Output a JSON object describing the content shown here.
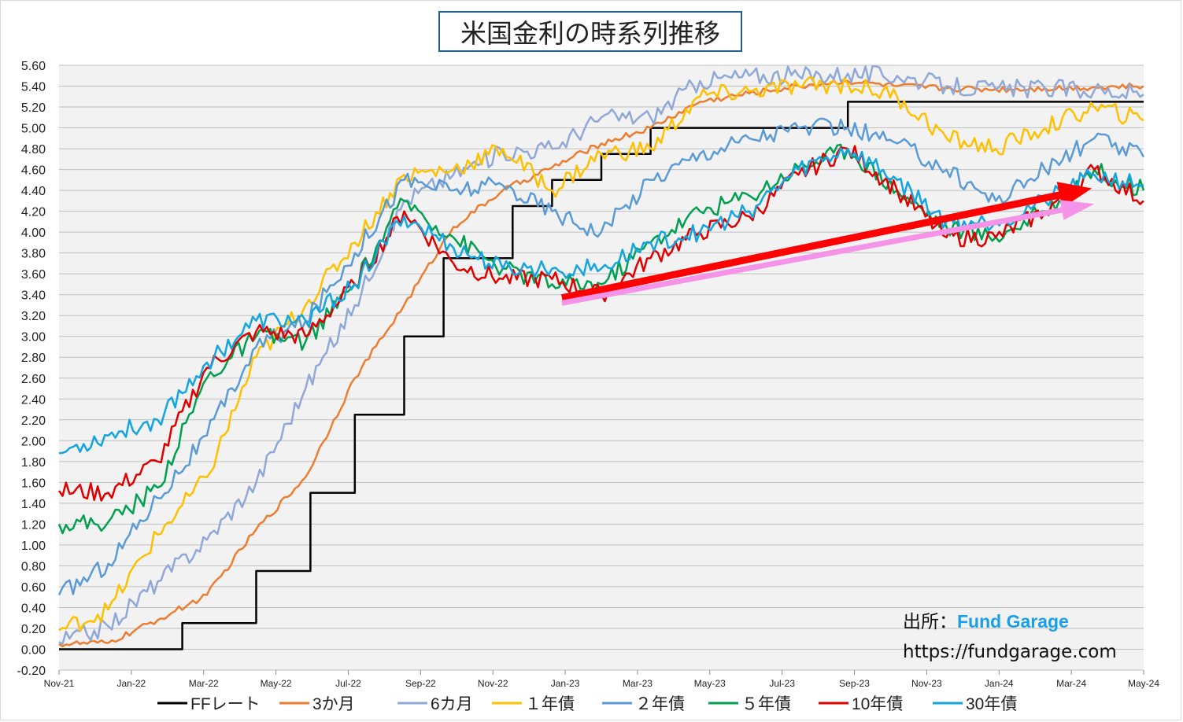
{
  "chart_data": {
    "type": "line",
    "title": "米国金利の時系列推移",
    "source_label": "出所：",
    "source_name": "Fund Garage",
    "source_url": "https://fundgarage.com",
    "ylim": [
      -0.2,
      5.6
    ],
    "y_ticks": [
      "5.60",
      "5.40",
      "5.20",
      "5.00",
      "4.80",
      "4.60",
      "4.40",
      "4.20",
      "4.00",
      "3.80",
      "3.60",
      "3.40",
      "3.20",
      "3.00",
      "2.80",
      "2.60",
      "2.40",
      "2.20",
      "2.00",
      "1.80",
      "1.60",
      "1.40",
      "1.20",
      "1.00",
      "0.80",
      "0.60",
      "0.40",
      "0.20",
      "0.00",
      "-0.20"
    ],
    "x_ticks": [
      "Nov-21",
      "Jan-22",
      "Mar-22",
      "May-22",
      "Jul-22",
      "Sep-22",
      "Nov-22",
      "Jan-23",
      "Mar-23",
      "May-23",
      "Jul-23",
      "Sep-23",
      "Nov-23",
      "Jan-24",
      "Mar-24",
      "May-24"
    ],
    "grid": true,
    "legend_position": "bottom",
    "series": [
      {
        "name": "FFレート",
        "color": "#000000",
        "step": true,
        "x": [
          0,
          2.5,
          2.5,
          4.0,
          4.0,
          5.1,
          5.1,
          6.0,
          6.0,
          7.0,
          7.0,
          7.8,
          7.8,
          8.6,
          8.6,
          9.2,
          9.2,
          10.0,
          10.0,
          11.0,
          11.0,
          12.0,
          12.0,
          14.5,
          14.5,
          15.6,
          15.6,
          16.0,
          16.0,
          17.0,
          17.0,
          22.0
        ],
        "y": [
          0,
          0,
          0.25,
          0.25,
          0.75,
          0.75,
          1.5,
          1.5,
          2.25,
          2.25,
          3.0,
          3.0,
          3.75,
          3.75,
          3.75,
          3.75,
          4.25,
          4.25,
          4.5,
          4.5,
          4.75,
          4.75,
          5.0,
          5.0,
          5.0,
          5.0,
          5.0,
          5.0,
          5.25,
          5.25,
          5.25,
          5.25
        ]
      },
      {
        "name": "3か月",
        "color": "#ed7d31",
        "x": [
          0,
          1,
          2,
          3,
          4,
          5,
          6,
          7,
          8,
          9,
          10,
          11,
          12,
          13,
          14,
          15,
          16,
          17,
          18,
          19,
          20,
          21,
          22
        ],
        "y": [
          0.05,
          0.06,
          0.28,
          0.52,
          1.15,
          1.65,
          2.6,
          3.3,
          4.05,
          4.4,
          4.62,
          4.85,
          5.0,
          5.25,
          5.33,
          5.4,
          5.45,
          5.4,
          5.38,
          5.37,
          5.38,
          5.39,
          5.4
        ]
      },
      {
        "name": "6カ月",
        "color": "#8fa8d8",
        "x": [
          0,
          1,
          2,
          3,
          4,
          5,
          6,
          7,
          8,
          9,
          10,
          11,
          12,
          13,
          14,
          15,
          16,
          17,
          18,
          19,
          20,
          21,
          22
        ],
        "y": [
          0.07,
          0.22,
          0.65,
          1.05,
          1.6,
          2.5,
          3.3,
          4.3,
          4.55,
          4.77,
          4.8,
          5.1,
          5.1,
          5.45,
          5.5,
          5.5,
          5.52,
          5.5,
          5.4,
          5.37,
          5.38,
          5.36,
          5.32
        ]
      },
      {
        "name": "１年債",
        "color": "#ffc000",
        "x": [
          0,
          1,
          2,
          3,
          4,
          5,
          6,
          7,
          8,
          9,
          10,
          11,
          12,
          13,
          14,
          15,
          16,
          17,
          18,
          19,
          20,
          21,
          22
        ],
        "y": [
          0.18,
          0.38,
          1.1,
          1.65,
          2.8,
          3.3,
          3.9,
          4.55,
          4.6,
          4.8,
          4.4,
          4.75,
          4.8,
          5.3,
          5.35,
          5.4,
          5.42,
          5.3,
          4.9,
          4.8,
          5.0,
          5.2,
          5.07
        ]
      },
      {
        "name": "２年債",
        "color": "#5b9bd5",
        "x": [
          0,
          1,
          2,
          3,
          4,
          5,
          6,
          7,
          8,
          9,
          10,
          11,
          12,
          13,
          14,
          15,
          16,
          17,
          18,
          19,
          20,
          21,
          22
        ],
        "y": [
          0.52,
          0.82,
          1.45,
          2.05,
          2.9,
          3.15,
          3.8,
          4.5,
          4.4,
          4.45,
          4.2,
          4.0,
          4.5,
          4.75,
          4.9,
          5.0,
          5.0,
          4.85,
          4.6,
          4.3,
          4.6,
          4.9,
          4.72
        ]
      },
      {
        "name": "５年債",
        "color": "#00a050",
        "x": [
          0,
          1,
          2,
          3,
          4,
          5,
          6,
          7,
          8,
          9,
          10,
          11,
          12,
          13,
          14,
          15,
          16,
          17,
          18,
          19,
          20,
          21,
          22
        ],
        "y": [
          1.2,
          1.22,
          1.55,
          2.6,
          3.0,
          2.95,
          3.5,
          4.3,
          3.95,
          3.65,
          3.5,
          3.5,
          3.9,
          4.2,
          4.35,
          4.62,
          4.8,
          4.4,
          4.05,
          3.95,
          4.2,
          4.6,
          4.4
        ]
      },
      {
        "name": "10年債",
        "color": "#e00000",
        "x": [
          0,
          1,
          2,
          3,
          4,
          5,
          6,
          7,
          8,
          9,
          10,
          11,
          12,
          13,
          14,
          15,
          16,
          17,
          18,
          19,
          20,
          21,
          22
        ],
        "y": [
          1.52,
          1.5,
          1.8,
          2.7,
          3.05,
          3.0,
          3.5,
          4.2,
          3.7,
          3.55,
          3.55,
          3.4,
          3.75,
          4.0,
          4.15,
          4.55,
          4.8,
          4.4,
          3.95,
          3.95,
          4.2,
          4.6,
          4.3
        ]
      },
      {
        "name": "30年債",
        "color": "#12a5e0",
        "x": [
          0,
          1,
          2,
          3,
          4,
          5,
          6,
          7,
          8,
          9,
          10,
          11,
          12,
          13,
          14,
          15,
          16,
          17,
          18,
          19,
          20,
          21,
          22
        ],
        "y": [
          1.88,
          2.05,
          2.2,
          2.75,
          3.15,
          3.15,
          3.5,
          4.15,
          3.85,
          3.65,
          3.65,
          3.65,
          3.9,
          4.0,
          4.2,
          4.6,
          4.8,
          4.5,
          4.1,
          4.1,
          4.3,
          4.55,
          4.45
        ]
      }
    ],
    "trend_arrows": [
      {
        "color": "#ff0000",
        "from": [
          10.2,
          3.37
        ],
        "to": [
          20.95,
          4.42
        ]
      },
      {
        "color": "#f593e8",
        "from": [
          10.2,
          3.32
        ],
        "to": [
          21.0,
          4.27
        ]
      }
    ]
  }
}
